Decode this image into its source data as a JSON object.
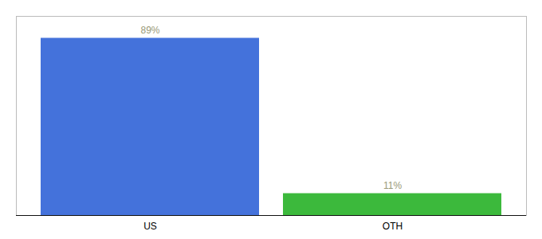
{
  "chart_data": {
    "type": "bar",
    "categories": [
      "US",
      "OTH"
    ],
    "values": [
      89,
      11
    ],
    "value_labels": [
      "89%",
      "11%"
    ],
    "colors": [
      "#4472db",
      "#3cb93c"
    ],
    "ylim": [
      0,
      100
    ],
    "tick_labels": "x",
    "data_labels": true
  }
}
